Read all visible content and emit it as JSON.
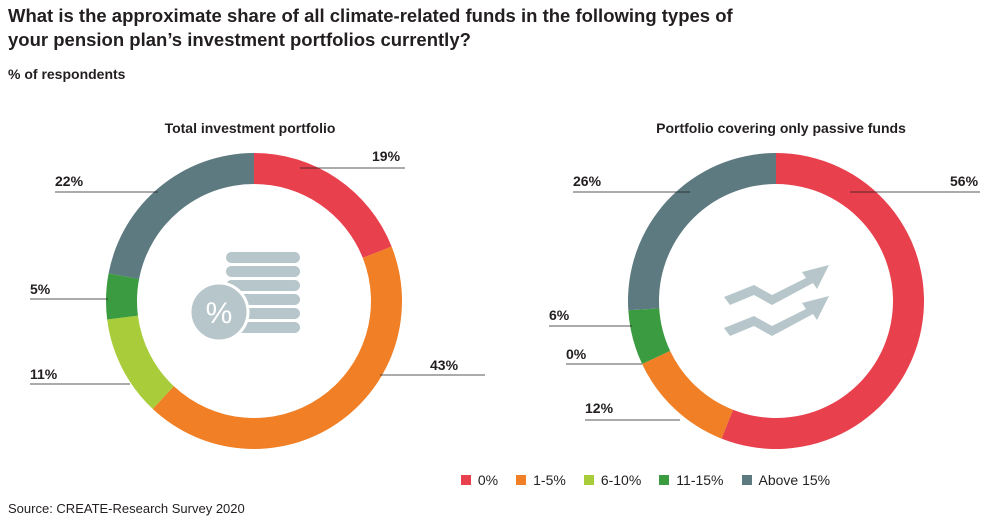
{
  "title": "What is the approximate share of all climate-related funds in the following types of your pension plan’s investment portfolios currently?",
  "subtitle": "% of respondents",
  "source": "Source: CREATE-Research Survey 2020",
  "colors": {
    "0%": "#e8404c",
    "1-5%": "#f07f25",
    "6-10%": "#a9cc3a",
    "11-15%": "#3b9b40",
    "Above 15%": "#5c7a80",
    "icon": "#b7c6ca",
    "leader": "#231f20"
  },
  "chart_data": [
    {
      "type": "pie",
      "style": "donut",
      "title": "Total investment portfolio",
      "icon": "percent-coins-icon",
      "categories": [
        "0%",
        "1-5%",
        "6-10%",
        "11-15%",
        "Above 15%"
      ],
      "values": [
        19,
        43,
        11,
        5,
        22
      ],
      "labels": [
        "19%",
        "43%",
        "11%",
        "5%",
        "22%"
      ]
    },
    {
      "type": "pie",
      "style": "donut",
      "title": "Portfolio covering only passive funds",
      "icon": "trend-arrows-icon",
      "categories": [
        "0%",
        "1-5%",
        "6-10%",
        "11-15%",
        "Above 15%"
      ],
      "values": [
        56,
        12,
        0,
        6,
        26
      ],
      "labels": [
        "56%",
        "12%",
        "0%",
        "6%",
        "26%"
      ]
    }
  ],
  "legend": [
    {
      "label": "0%"
    },
    {
      "label": "1-5%"
    },
    {
      "label": "6-10%"
    },
    {
      "label": "11-15%"
    },
    {
      "label": "Above 15%"
    }
  ]
}
